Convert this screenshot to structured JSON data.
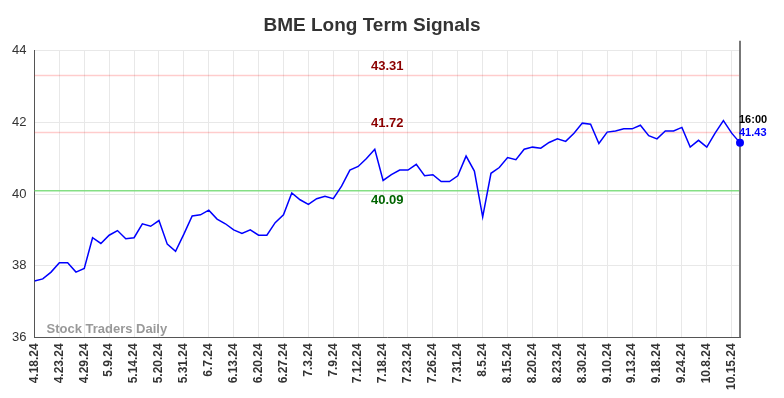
{
  "chart_data": {
    "type": "line",
    "title": "BME Long Term Signals",
    "categories": [
      "4.18.24",
      null,
      null,
      "4.23.24",
      null,
      null,
      "4.29.24",
      null,
      null,
      "5.9.24",
      null,
      null,
      "5.14.24",
      null,
      null,
      "5.20.24",
      null,
      null,
      "5.31.24",
      null,
      null,
      "6.7.24",
      null,
      null,
      "6.13.24",
      null,
      null,
      "6.20.24",
      null,
      null,
      "6.27.24",
      null,
      null,
      "7.3.24",
      null,
      null,
      "7.9.24",
      null,
      null,
      "7.12.24",
      null,
      null,
      "7.18.24",
      null,
      null,
      "7.23.24",
      null,
      null,
      "7.26.24",
      null,
      null,
      "7.31.24",
      null,
      null,
      "8.5.24",
      null,
      null,
      "8.15.24",
      null,
      null,
      "8.20.24",
      null,
      null,
      "8.23.24",
      null,
      null,
      "8.30.24",
      null,
      null,
      "9.10.24",
      null,
      null,
      "9.13.24",
      null,
      null,
      "9.18.24",
      null,
      null,
      "9.24.24",
      null,
      null,
      "10.8.24",
      null,
      null,
      "10.15.24",
      null
    ],
    "values": [
      37.57,
      37.63,
      37.82,
      38.08,
      38.08,
      37.82,
      37.92,
      38.78,
      38.62,
      38.85,
      38.98,
      38.75,
      38.78,
      39.17,
      39.1,
      39.26,
      38.6,
      38.4,
      38.88,
      39.39,
      39.42,
      39.55,
      39.3,
      39.17,
      39.0,
      38.9,
      39.0,
      38.85,
      38.85,
      39.2,
      39.42,
      40.03,
      39.84,
      39.71,
      39.87,
      39.94,
      39.87,
      40.22,
      40.67,
      40.77,
      40.99,
      41.25,
      40.38,
      40.54,
      40.67,
      40.67,
      40.83,
      40.51,
      40.54,
      40.35,
      40.35,
      40.51,
      41.06,
      40.64,
      39.36,
      40.58,
      40.74,
      41.02,
      40.96,
      41.25,
      41.31,
      41.28,
      41.44,
      41.54,
      41.47,
      41.7,
      41.98,
      41.95,
      41.41,
      41.73,
      41.76,
      41.82,
      41.82,
      41.92,
      41.63,
      41.54,
      41.76,
      41.76,
      41.86,
      41.31,
      41.5,
      41.31,
      41.7,
      42.05,
      41.7,
      41.43
    ],
    "color": "#0000ff",
    "ylim": [
      36,
      44
    ],
    "yticks": [
      36,
      38,
      40,
      42,
      44
    ],
    "grid": true,
    "signals": [
      {
        "value": 43.31,
        "color": "#8b0000"
      },
      {
        "value": 41.72,
        "color": "#8b0000"
      },
      {
        "value": 40.09,
        "color": "#006400"
      }
    ],
    "end_label": {
      "time": "16:00",
      "value": 41.43
    },
    "watermark": "Stock Traders Daily"
  }
}
